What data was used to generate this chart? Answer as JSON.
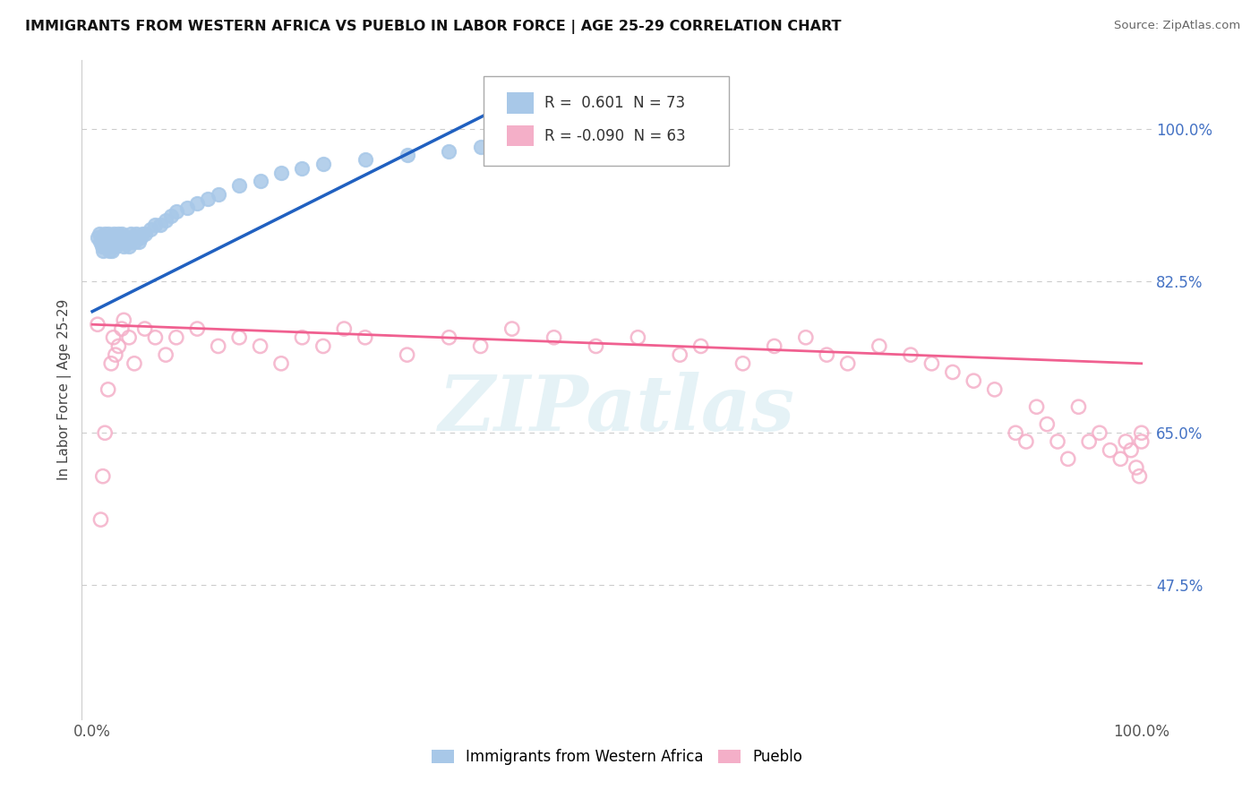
{
  "title": "IMMIGRANTS FROM WESTERN AFRICA VS PUEBLO IN LABOR FORCE | AGE 25-29 CORRELATION CHART",
  "source": "Source: ZipAtlas.com",
  "ylabel": "In Labor Force | Age 25-29",
  "ytick_labels": [
    "47.5%",
    "65.0%",
    "82.5%",
    "100.0%"
  ],
  "ytick_values": [
    0.475,
    0.65,
    0.825,
    1.0
  ],
  "xlim": [
    -0.01,
    1.01
  ],
  "ylim": [
    0.32,
    1.08
  ],
  "legend_blue_r": "0.601",
  "legend_blue_n": "73",
  "legend_pink_r": "-0.090",
  "legend_pink_n": "63",
  "blue_color": "#a8c8e8",
  "pink_color": "#f4afc8",
  "blue_line_color": "#2060c0",
  "pink_line_color": "#f06090",
  "grid_color": "#cccccc",
  "blue_line_x": [
    0.0,
    0.38
  ],
  "blue_line_y": [
    0.79,
    1.02
  ],
  "pink_line_x": [
    0.0,
    1.0
  ],
  "pink_line_y": [
    0.775,
    0.73
  ],
  "blue_scatter_x": [
    0.005,
    0.007,
    0.008,
    0.009,
    0.01,
    0.01,
    0.011,
    0.012,
    0.012,
    0.013,
    0.014,
    0.015,
    0.015,
    0.015,
    0.016,
    0.016,
    0.017,
    0.018,
    0.018,
    0.019,
    0.02,
    0.02,
    0.02,
    0.021,
    0.022,
    0.022,
    0.023,
    0.024,
    0.025,
    0.025,
    0.026,
    0.027,
    0.028,
    0.028,
    0.029,
    0.03,
    0.03,
    0.031,
    0.032,
    0.033,
    0.034,
    0.035,
    0.036,
    0.037,
    0.038,
    0.04,
    0.042,
    0.044,
    0.046,
    0.048,
    0.05,
    0.055,
    0.06,
    0.065,
    0.07,
    0.075,
    0.08,
    0.09,
    0.1,
    0.11,
    0.12,
    0.14,
    0.16,
    0.18,
    0.2,
    0.22,
    0.26,
    0.3,
    0.34,
    0.37,
    0.38,
    0.4,
    0.48
  ],
  "blue_scatter_y": [
    0.875,
    0.88,
    0.87,
    0.865,
    0.86,
    0.875,
    0.87,
    0.865,
    0.88,
    0.87,
    0.875,
    0.88,
    0.87,
    0.865,
    0.875,
    0.86,
    0.865,
    0.875,
    0.87,
    0.86,
    0.87,
    0.88,
    0.875,
    0.87,
    0.875,
    0.865,
    0.875,
    0.87,
    0.875,
    0.88,
    0.875,
    0.87,
    0.875,
    0.88,
    0.87,
    0.875,
    0.865,
    0.875,
    0.87,
    0.875,
    0.875,
    0.865,
    0.87,
    0.88,
    0.875,
    0.87,
    0.88,
    0.87,
    0.875,
    0.88,
    0.88,
    0.885,
    0.89,
    0.89,
    0.895,
    0.9,
    0.905,
    0.91,
    0.915,
    0.92,
    0.925,
    0.935,
    0.94,
    0.95,
    0.955,
    0.96,
    0.965,
    0.97,
    0.975,
    0.98,
    0.985,
    0.99,
    0.995
  ],
  "pink_scatter_x": [
    0.005,
    0.008,
    0.01,
    0.012,
    0.015,
    0.018,
    0.02,
    0.022,
    0.025,
    0.028,
    0.03,
    0.035,
    0.04,
    0.05,
    0.06,
    0.07,
    0.08,
    0.1,
    0.12,
    0.14,
    0.16,
    0.18,
    0.2,
    0.22,
    0.24,
    0.26,
    0.3,
    0.34,
    0.37,
    0.4,
    0.44,
    0.48,
    0.52,
    0.56,
    0.58,
    0.62,
    0.65,
    0.68,
    0.7,
    0.72,
    0.75,
    0.78,
    0.8,
    0.82,
    0.84,
    0.86,
    0.88,
    0.89,
    0.9,
    0.91,
    0.92,
    0.93,
    0.94,
    0.95,
    0.96,
    0.97,
    0.98,
    0.985,
    0.99,
    0.995,
    0.998,
    1.0,
    1.0
  ],
  "pink_scatter_y": [
    0.775,
    0.55,
    0.6,
    0.65,
    0.7,
    0.73,
    0.76,
    0.74,
    0.75,
    0.77,
    0.78,
    0.76,
    0.73,
    0.77,
    0.76,
    0.74,
    0.76,
    0.77,
    0.75,
    0.76,
    0.75,
    0.73,
    0.76,
    0.75,
    0.77,
    0.76,
    0.74,
    0.76,
    0.75,
    0.77,
    0.76,
    0.75,
    0.76,
    0.74,
    0.75,
    0.73,
    0.75,
    0.76,
    0.74,
    0.73,
    0.75,
    0.74,
    0.73,
    0.72,
    0.71,
    0.7,
    0.65,
    0.64,
    0.68,
    0.66,
    0.64,
    0.62,
    0.68,
    0.64,
    0.65,
    0.63,
    0.62,
    0.64,
    0.63,
    0.61,
    0.6,
    0.65,
    0.64
  ],
  "watermark_text": "ZIPatlas",
  "legend_box_color": "#f0f8ff"
}
